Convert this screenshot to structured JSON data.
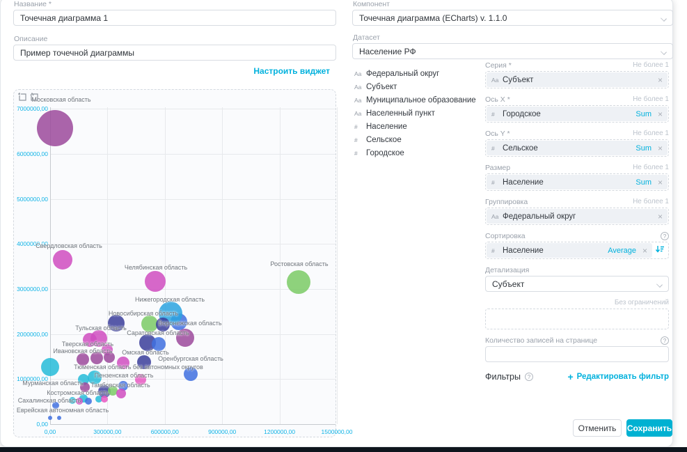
{
  "accent_color": "#00b1dd",
  "left": {
    "name_label": "Название *",
    "name_value": "Точечная диаграмма 1",
    "desc_label": "Описание",
    "desc_value": "Пример точечной диаграммы",
    "configure_link": "Настроить виджет"
  },
  "right": {
    "component_label": "Компонент",
    "component_value": "Точечная диаграмма (ECharts) v. 1.1.0",
    "dataset_label": "Датасет",
    "dataset_value": "Население РФ",
    "fields": [
      {
        "icon": "Aa",
        "name": "Федеральный округ"
      },
      {
        "icon": "Aa",
        "name": "Субъект"
      },
      {
        "icon": "Aa",
        "name": "Муниципальное образование"
      },
      {
        "icon": "Aa",
        "name": "Населенный пункт"
      },
      {
        "icon": "#",
        "name": "Население"
      },
      {
        "icon": "#",
        "name": "Сельское"
      },
      {
        "icon": "#",
        "name": "Городское"
      }
    ],
    "sections": {
      "series": {
        "label": "Серия *",
        "limit": "Не более 1",
        "pill": {
          "icon": "Aa",
          "text": "Субъект",
          "close": "×"
        }
      },
      "x": {
        "label": "Ось X *",
        "limit": "Не более 1",
        "pill": {
          "icon": "#",
          "text": "Городское",
          "agg": "Sum",
          "close": "×"
        }
      },
      "y": {
        "label": "Ось Y *",
        "limit": "Не более 1",
        "pill": {
          "icon": "#",
          "text": "Сельское",
          "agg": "Sum",
          "close": "×"
        }
      },
      "size": {
        "label": "Размер",
        "limit": "Не более 1",
        "pill": {
          "icon": "#",
          "text": "Население",
          "agg": "Sum",
          "close": "×"
        }
      },
      "group": {
        "label": "Группировка",
        "limit": "Не более 1",
        "pill": {
          "icon": "Aa",
          "text": "Федеральный округ",
          "close": "×"
        }
      },
      "sort": {
        "label": "Сортировка",
        "pill": {
          "icon": "#",
          "text": "Население",
          "agg": "Average",
          "close": "×"
        }
      },
      "detail": {
        "label": "Детализация",
        "value": "Субъект"
      },
      "limit_box": {
        "hint": "Без ограничений"
      },
      "page_size": {
        "label": "Количество записей на странице",
        "value": ""
      },
      "filters": {
        "label": "Фильтры",
        "plus": "+",
        "edit_link": "Редактировать фильтр"
      }
    },
    "buttons": {
      "cancel": "Отменить",
      "save": "Сохранить"
    }
  },
  "chart_data": {
    "type": "scatter",
    "x_field": "Городское (Sum)",
    "y_field": "Сельское (Sum)",
    "size_field": "Население (Sum)",
    "series_field": "Субъект",
    "x_axis": {
      "min": 0,
      "max": 1500000,
      "values": [
        0,
        300000,
        600000,
        900000,
        1200000,
        1500000
      ],
      "labels": [
        "0,00",
        "300000,00",
        "600000,00",
        "900000,00",
        "1200000,00",
        "1500000,00"
      ]
    },
    "y_axis": {
      "min": 0,
      "max": 7000000,
      "values": [
        0,
        1000000,
        2000000,
        3000000,
        4000000,
        5000000,
        6000000,
        7000000
      ],
      "labels": [
        "0,00",
        "1000000,00",
        "2000000,00",
        "3000000,00",
        "4000000,00",
        "5000000,00",
        "6000000,00",
        "7000000,00"
      ]
    },
    "grid": true,
    "colors": {
      "purple": "#9c4b9c",
      "magenta": "#cf4ec0",
      "brightblue": "#2ba3e0",
      "indigo": "#3b3f9b",
      "green": "#7ccb66",
      "royal": "#4070e0",
      "cyan": "#27bcd9",
      "pink": "#e659c1"
    },
    "points": [
      {
        "name": "Московская область",
        "x": 25000,
        "y": 6570000,
        "r": 26,
        "c": "purple"
      },
      {
        "name": "Свердловская область",
        "x": 65000,
        "y": 3650000,
        "r": 14,
        "c": "magenta"
      },
      {
        "name": "Челябинская область",
        "x": 550000,
        "y": 3170000,
        "r": 15,
        "c": "magenta"
      },
      {
        "name": "Ростовская область",
        "x": 1300000,
        "y": 3150000,
        "r": 17,
        "c": "green"
      },
      {
        "name": "Новосибирская область",
        "x": 673000,
        "y": 2270000,
        "r": 12,
        "c": "royal"
      },
      {
        "name": "Нижегородская область",
        "x": 630000,
        "y": 2460000,
        "r": 17,
        "c": "brightblue"
      },
      {
        "name": "Тульская область",
        "x": 346000,
        "y": 2240000,
        "r": 12,
        "c": "indigo"
      },
      {
        "name": "Воронежская область",
        "x": 520000,
        "y": 2225000,
        "r": 12,
        "c": "green"
      },
      {
        "x": 590000,
        "y": 2210000,
        "r": 10,
        "c": "indigo"
      },
      {
        "x": 706000,
        "y": 1915000,
        "r": 13,
        "c": "purple"
      },
      {
        "name": "Саратовская область",
        "x": 510000,
        "y": 1810000,
        "r": 12,
        "c": "indigo"
      },
      {
        "x": 568000,
        "y": 1780000,
        "r": 10,
        "c": "royal"
      },
      {
        "name": "Тверская область",
        "x": 207000,
        "y": 1870000,
        "r": 10,
        "c": "magenta"
      },
      {
        "x": 255000,
        "y": 1900000,
        "r": 12,
        "c": "magenta"
      },
      {
        "x": 298000,
        "y": 1650000,
        "r": 8,
        "c": "magenta"
      },
      {
        "name": "Ивановская область",
        "x": 171000,
        "y": 1437000,
        "r": 9,
        "c": "purple"
      },
      {
        "x": 244000,
        "y": 1468000,
        "r": 9,
        "c": "purple"
      },
      {
        "x": 309000,
        "y": 1484000,
        "r": 8,
        "c": "purple"
      },
      {
        "name": "Тюменская область без автономных округов",
        "x": 382000,
        "y": 1360000,
        "r": 9,
        "c": "magenta"
      },
      {
        "name": "Омская область",
        "x": 491000,
        "y": 1375000,
        "r": 10,
        "c": "indigo"
      },
      {
        "name": "Оренбургская область",
        "x": 735000,
        "y": 1113000,
        "r": 10,
        "c": "royal"
      },
      {
        "name": "Мурманская область",
        "x": 0,
        "y": 1267000,
        "r": 13,
        "c": "cyan"
      },
      {
        "name": "Пензенская область",
        "x": 233000,
        "y": 1035000,
        "r": 10,
        "c": "cyan"
      },
      {
        "x": 175000,
        "y": 989000,
        "r": 8,
        "c": "cyan"
      },
      {
        "x": 473000,
        "y": 989000,
        "r": 8,
        "c": "pink"
      },
      {
        "name": "Тамбовская область",
        "x": 382000,
        "y": 850000,
        "r": 7,
        "c": "royal"
      },
      {
        "x": 284000,
        "y": 726000,
        "r": 9,
        "c": "indigo"
      },
      {
        "x": 328000,
        "y": 742000,
        "r": 7,
        "c": "green"
      },
      {
        "x": 371000,
        "y": 680000,
        "r": 7,
        "c": "magenta"
      },
      {
        "name": "Костромская область",
        "x": 182000,
        "y": 819000,
        "r": 7,
        "c": "purple"
      },
      {
        "x": 175000,
        "y": 572000,
        "r": 6,
        "c": "cyan"
      },
      {
        "name": "Сахалинская область",
        "x": 255000,
        "y": 556000,
        "r": 5,
        "c": "cyan"
      },
      {
        "x": 284000,
        "y": 556000,
        "r": 5,
        "c": "pink"
      },
      {
        "x": 117000,
        "y": 526000,
        "r": 5,
        "c": "cyan"
      },
      {
        "x": 153000,
        "y": 510000,
        "r": 5,
        "c": "magenta"
      },
      {
        "x": 200000,
        "y": 510000,
        "r": 5,
        "c": "royal"
      },
      {
        "x": 29000,
        "y": 417000,
        "r": 5,
        "c": "royal"
      },
      {
        "name": "Еврейская автономная область",
        "x": 0,
        "y": 139000,
        "r": 3,
        "c": "royal"
      },
      {
        "x": 47000,
        "y": 139000,
        "r": 3,
        "c": "royal"
      }
    ],
    "annotations": [
      {
        "text": "Московская область",
        "cx": 68,
        "top": 9
      },
      {
        "text": "Свердловская область",
        "cx": 79,
        "top": 219
      },
      {
        "text": "Челябинская область",
        "cx": 204,
        "top": 250
      },
      {
        "text": "Ростовская область",
        "cx": 410,
        "top": 245
      },
      {
        "text": "Нижегородская область",
        "cx": 224,
        "top": 296
      },
      {
        "text": "Новосибирская область",
        "cx": 186,
        "top": 316
      },
      {
        "text": "Воронежская область",
        "cx": 253,
        "top": 330
      },
      {
        "text": "Тульская область",
        "cx": 125,
        "top": 337
      },
      {
        "text": "Саратовская область",
        "cx": 207,
        "top": 344
      },
      {
        "text": "Тверская область",
        "cx": 106,
        "top": 360
      },
      {
        "text": "Ивановская область",
        "cx": 99,
        "top": 370
      },
      {
        "text": "Омская область",
        "cx": 189,
        "top": 372
      },
      {
        "text": "Оренбургская область",
        "cx": 254,
        "top": 381
      },
      {
        "text": "Тюменская область без автономных округов",
        "cx": 179,
        "top": 393
      },
      {
        "text": "Пензенская область",
        "cx": 158,
        "top": 405
      },
      {
        "text": "Мурманская область",
        "cx": 56,
        "top": 416
      },
      {
        "text": "Тамбовская область",
        "cx": 153,
        "top": 419
      },
      {
        "text": "Костромская область",
        "cx": 92,
        "top": 430
      },
      {
        "text": "Сахалинская область",
        "cx": 51,
        "top": 441
      },
      {
        "text": "Еврейская автономная область",
        "cx": 70,
        "top": 455
      }
    ]
  }
}
